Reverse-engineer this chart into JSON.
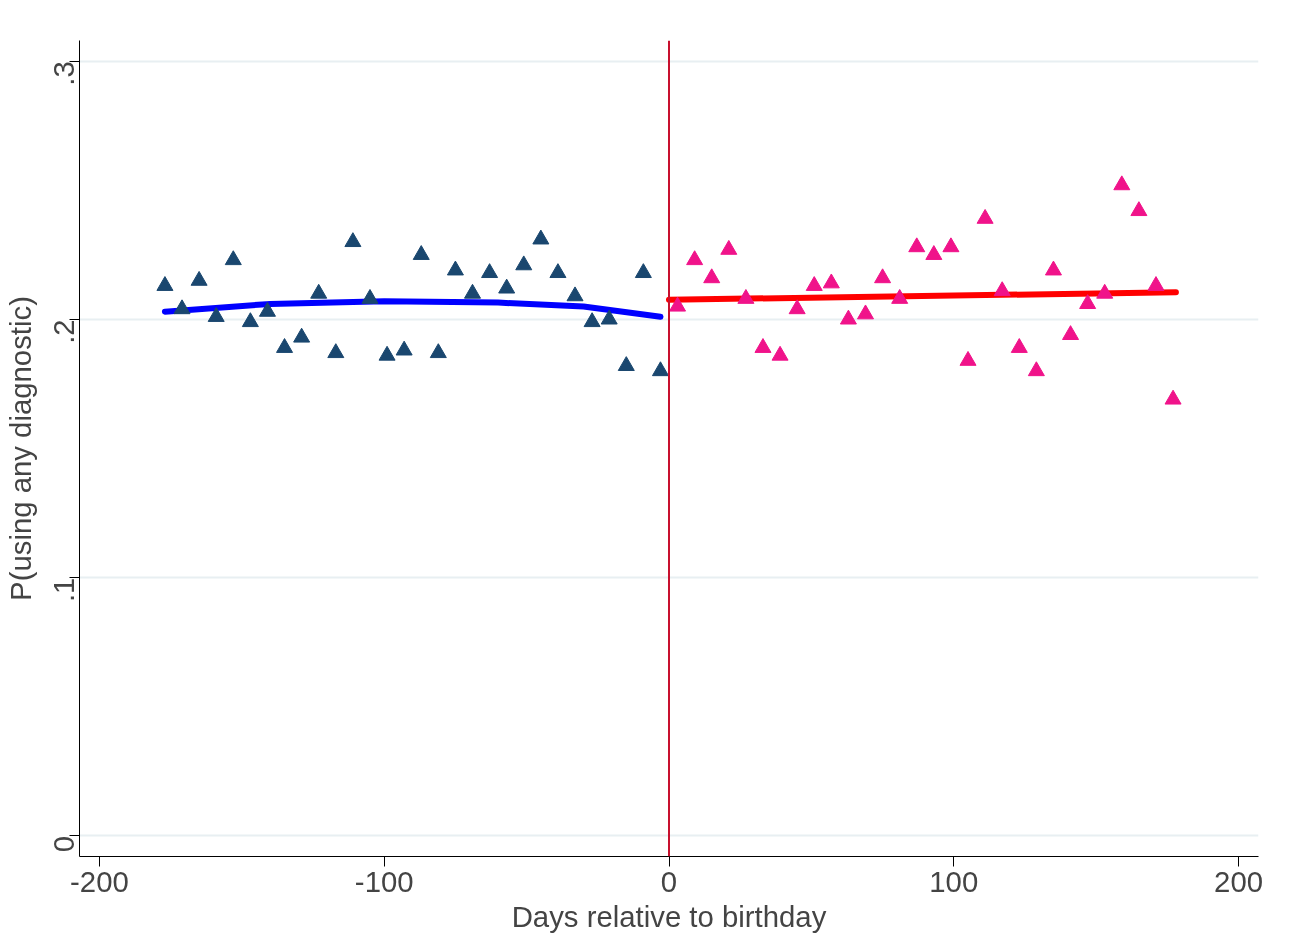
{
  "chart_data": {
    "type": "scatter",
    "xlabel": "Days relative to birthday",
    "ylabel": "P(using any diagnostic)",
    "xlim": [
      -207,
      207
    ],
    "ylim": [
      -0.008,
      0.308
    ],
    "xticks": [
      {
        "value": -200,
        "label": "-200"
      },
      {
        "value": -100,
        "label": "-100"
      },
      {
        "value": 0,
        "label": "0"
      },
      {
        "value": 100,
        "label": "100"
      },
      {
        "value": 200,
        "label": "200"
      }
    ],
    "yticks": [
      {
        "value": 0,
        "label": "0"
      },
      {
        "value": 0.1,
        "label": ".1"
      },
      {
        "value": 0.2,
        "label": ".2"
      },
      {
        "value": 0.3,
        "label": ".3"
      }
    ],
    "grid": "y",
    "ref_lines": [
      {
        "axis": "x",
        "value": 0,
        "label": null,
        "color": "#c8102e"
      }
    ],
    "series": [
      {
        "marker": "triangle",
        "color": "#1a476f",
        "x": [
          -177,
          -171,
          -165,
          -159,
          -153,
          -147,
          -141,
          -135,
          -129,
          -123,
          -117,
          -111,
          -105,
          -99,
          -93,
          -87,
          -81,
          -75,
          -69,
          -63,
          -57,
          -51,
          -45,
          -39,
          -33,
          -27,
          -21,
          -15,
          -9,
          -3
        ],
        "values": [
          0.213,
          0.204,
          0.215,
          0.201,
          0.223,
          0.199,
          0.203,
          0.189,
          0.193,
          0.21,
          0.187,
          0.23,
          0.208,
          0.186,
          0.188,
          0.225,
          0.187,
          0.219,
          0.21,
          0.218,
          0.212,
          0.221,
          0.231,
          0.218,
          0.209,
          0.199,
          0.2,
          0.182,
          0.218,
          0.18
        ]
      },
      {
        "marker": "triangle",
        "color": "#f0138a",
        "x": [
          3,
          9,
          15,
          21,
          27,
          33,
          39,
          45,
          51,
          57,
          63,
          69,
          75,
          81,
          87,
          93,
          99,
          105,
          111,
          117,
          123,
          129,
          135,
          141,
          147,
          153,
          159,
          165,
          171,
          177
        ],
        "values": [
          0.205,
          0.223,
          0.216,
          0.227,
          0.208,
          0.189,
          0.186,
          0.204,
          0.213,
          0.214,
          0.2,
          0.202,
          0.216,
          0.208,
          0.228,
          0.225,
          0.228,
          0.184,
          0.239,
          0.211,
          0.189,
          0.18,
          0.219,
          0.194,
          0.206,
          0.21,
          0.252,
          0.242,
          0.213,
          0.169
        ]
      },
      {
        "type": "line",
        "color": "#0000ff",
        "x": [
          -177,
          -140,
          -100,
          -60,
          -30,
          -3
        ],
        "values": [
          0.203,
          0.206,
          0.207,
          0.2065,
          0.205,
          0.201
        ]
      },
      {
        "type": "line",
        "color": "#ff0000",
        "x": [
          0,
          178
        ],
        "values": [
          0.2076,
          0.2105
        ]
      }
    ]
  }
}
